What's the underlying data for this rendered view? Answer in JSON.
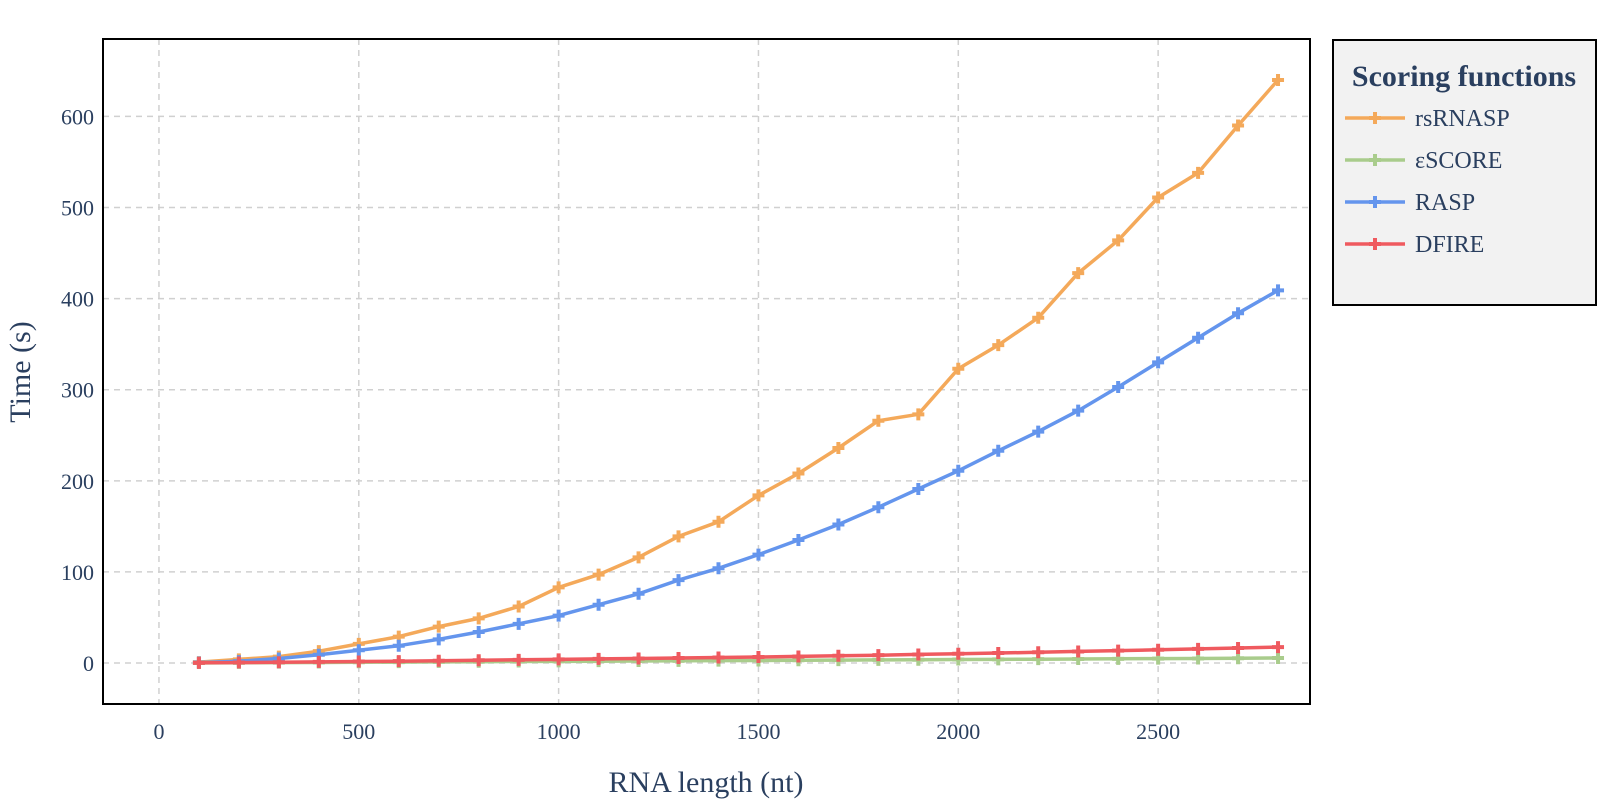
{
  "chart_data": {
    "type": "line",
    "xlabel": "RNA length (nt)",
    "ylabel": "Time (s)",
    "xlim": [
      -140,
      2880
    ],
    "ylim": [
      -45,
      685
    ],
    "x_ticks": [
      0,
      500,
      1000,
      1500,
      2000,
      2500
    ],
    "y_ticks": [
      0,
      100,
      200,
      300,
      400,
      500,
      600
    ],
    "grid": true,
    "grid_style": "dashed",
    "legend": {
      "title": "Scoring functions",
      "position": "right"
    },
    "x": [
      100,
      200,
      300,
      400,
      500,
      600,
      700,
      800,
      900,
      1000,
      1100,
      1200,
      1300,
      1400,
      1500,
      1600,
      1700,
      1800,
      1900,
      2000,
      2100,
      2200,
      2300,
      2400,
      2500,
      2600,
      2700,
      2800
    ],
    "series": [
      {
        "name": "rsRNASP",
        "color": "#f4a95a",
        "marker": "cross",
        "values": [
          1,
          4,
          7,
          13,
          21,
          29,
          40,
          49,
          62,
          83,
          97,
          116,
          139,
          155,
          184,
          208,
          236,
          266,
          273,
          323,
          349,
          379,
          428,
          464,
          511,
          538,
          590,
          640
        ]
      },
      {
        "name": "εSCORE",
        "color": "#a9cc8c",
        "marker": "cross",
        "values": [
          0,
          0.2,
          0.4,
          0.6,
          0.8,
          1.0,
          1.2,
          1.4,
          1.6,
          1.8,
          2.0,
          2.2,
          2.4,
          2.6,
          2.8,
          3.0,
          3.2,
          3.4,
          3.6,
          3.8,
          4.0,
          4.2,
          4.4,
          4.6,
          4.8,
          5.0,
          5.2,
          5.5
        ]
      },
      {
        "name": "RASP",
        "color": "#6495ed",
        "marker": "cross",
        "values": [
          0.5,
          2,
          5,
          9,
          14,
          19,
          26,
          34,
          43,
          52,
          64,
          76,
          91,
          104,
          119,
          135,
          152,
          171,
          191,
          211,
          233,
          254,
          277,
          303,
          330,
          357,
          384,
          409
        ]
      },
      {
        "name": "DFIRE",
        "color": "#ef5a5f",
        "marker": "cross",
        "values": [
          0.2,
          0.5,
          0.8,
          1.2,
          1.6,
          2.0,
          2.5,
          3.0,
          3.5,
          4.0,
          4.5,
          5.0,
          5.5,
          6.0,
          6.6,
          7.2,
          7.9,
          8.6,
          9.4,
          10.2,
          11.0,
          11.8,
          12.7,
          13.6,
          14.5,
          15.5,
          16.5,
          17.5
        ]
      }
    ]
  }
}
